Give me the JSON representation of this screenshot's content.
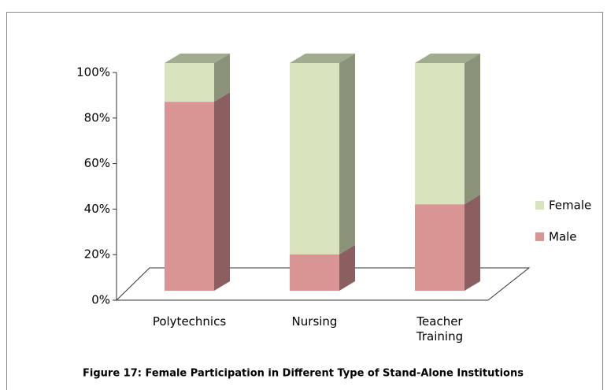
{
  "chart_data": {
    "type": "bar3d_stacked",
    "title": "Figure 17: Female Participation in Different Type of Stand-Alone Institutions",
    "categories": [
      "Polytechnics",
      "Nursing",
      "Teacher Training"
    ],
    "series": [
      {
        "name": "Male",
        "color": "#d99594",
        "values": [
          83,
          16,
          38
        ]
      },
      {
        "name": "Female",
        "color": "#d7e4bd",
        "values": [
          17,
          84,
          62
        ]
      }
    ],
    "ylim": [
      0,
      100
    ],
    "yticks": [
      {
        "value": 0,
        "label": "0%"
      },
      {
        "value": 20,
        "label": "20%"
      },
      {
        "value": 40,
        "label": "40%"
      },
      {
        "value": 60,
        "label": "60%"
      },
      {
        "value": 80,
        "label": "80%"
      },
      {
        "value": 100,
        "label": "100%"
      }
    ],
    "legend": "right"
  }
}
